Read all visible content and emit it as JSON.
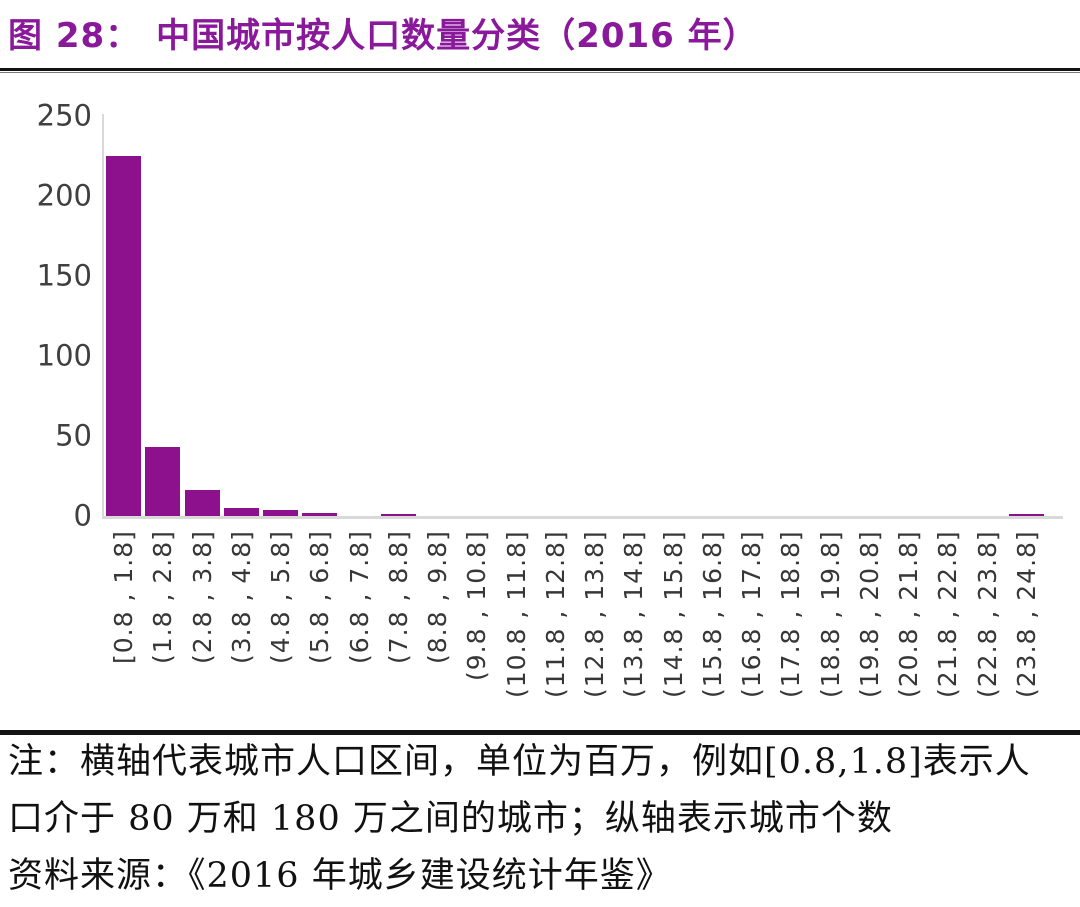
{
  "header": {
    "title_prefix": "图 28：",
    "title_text": "中国城市按人口数量分类（2016 年）"
  },
  "colors": {
    "title": "#8A189B",
    "bar": "#8D108D",
    "axis_line": "#D9D9D9",
    "tick_text": "#3F3F3F",
    "note_text": "#111111",
    "divider": "#131313"
  },
  "chart_data": {
    "type": "bar",
    "title": "中国城市按人口数量分类（2016 年）",
    "categories": [
      "[0.8 , 1.8]",
      "(1.8 , 2.8]",
      "(2.8 , 3.8]",
      "(3.8 , 4.8]",
      "(4.8 , 5.8]",
      "(5.8 , 6.8]",
      "(6.8 , 7.8]",
      "(7.8 , 8.8]",
      "(8.8 , 9.8]",
      "(9.8 , 10.8]",
      "(10.8 , 11.8]",
      "(11.8 , 12.8]",
      "(12.8 , 13.8]",
      "(13.8 , 14.8]",
      "(14.8 , 15.8]",
      "(15.8 , 16.8]",
      "(16.8 , 17.8]",
      "(17.8 , 18.8]",
      "(18.8 , 19.8]",
      "(19.8 , 20.8]",
      "(20.8 , 21.8]",
      "(21.8 , 22.8]",
      "(22.8 , 23.8]",
      "(23.8 , 24.8]"
    ],
    "values": [
      225,
      43,
      16,
      5,
      4,
      2,
      0,
      1,
      0,
      0,
      0,
      0,
      0,
      0,
      0,
      0,
      0,
      0,
      0,
      0,
      0,
      0,
      0,
      1
    ],
    "xlabel": "",
    "ylabel": "",
    "yticks": [
      0,
      50,
      100,
      150,
      200,
      250
    ],
    "ylim": [
      0,
      250
    ],
    "grid": false,
    "legend": false,
    "bar_color": "#8D108D",
    "x_unit_note": "横轴代表城市人口区间，单位为百万",
    "y_unit_note": "纵轴表示城市个数"
  },
  "notes": {
    "line1": "注：横轴代表城市人口区间，单位为百万，例如[0.8,1.8]表示人",
    "line2": "口介于 80 万和 180 万之间的城市；纵轴表示城市个数",
    "line3": "资料来源：《2016 年城乡建设统计年鉴》"
  }
}
